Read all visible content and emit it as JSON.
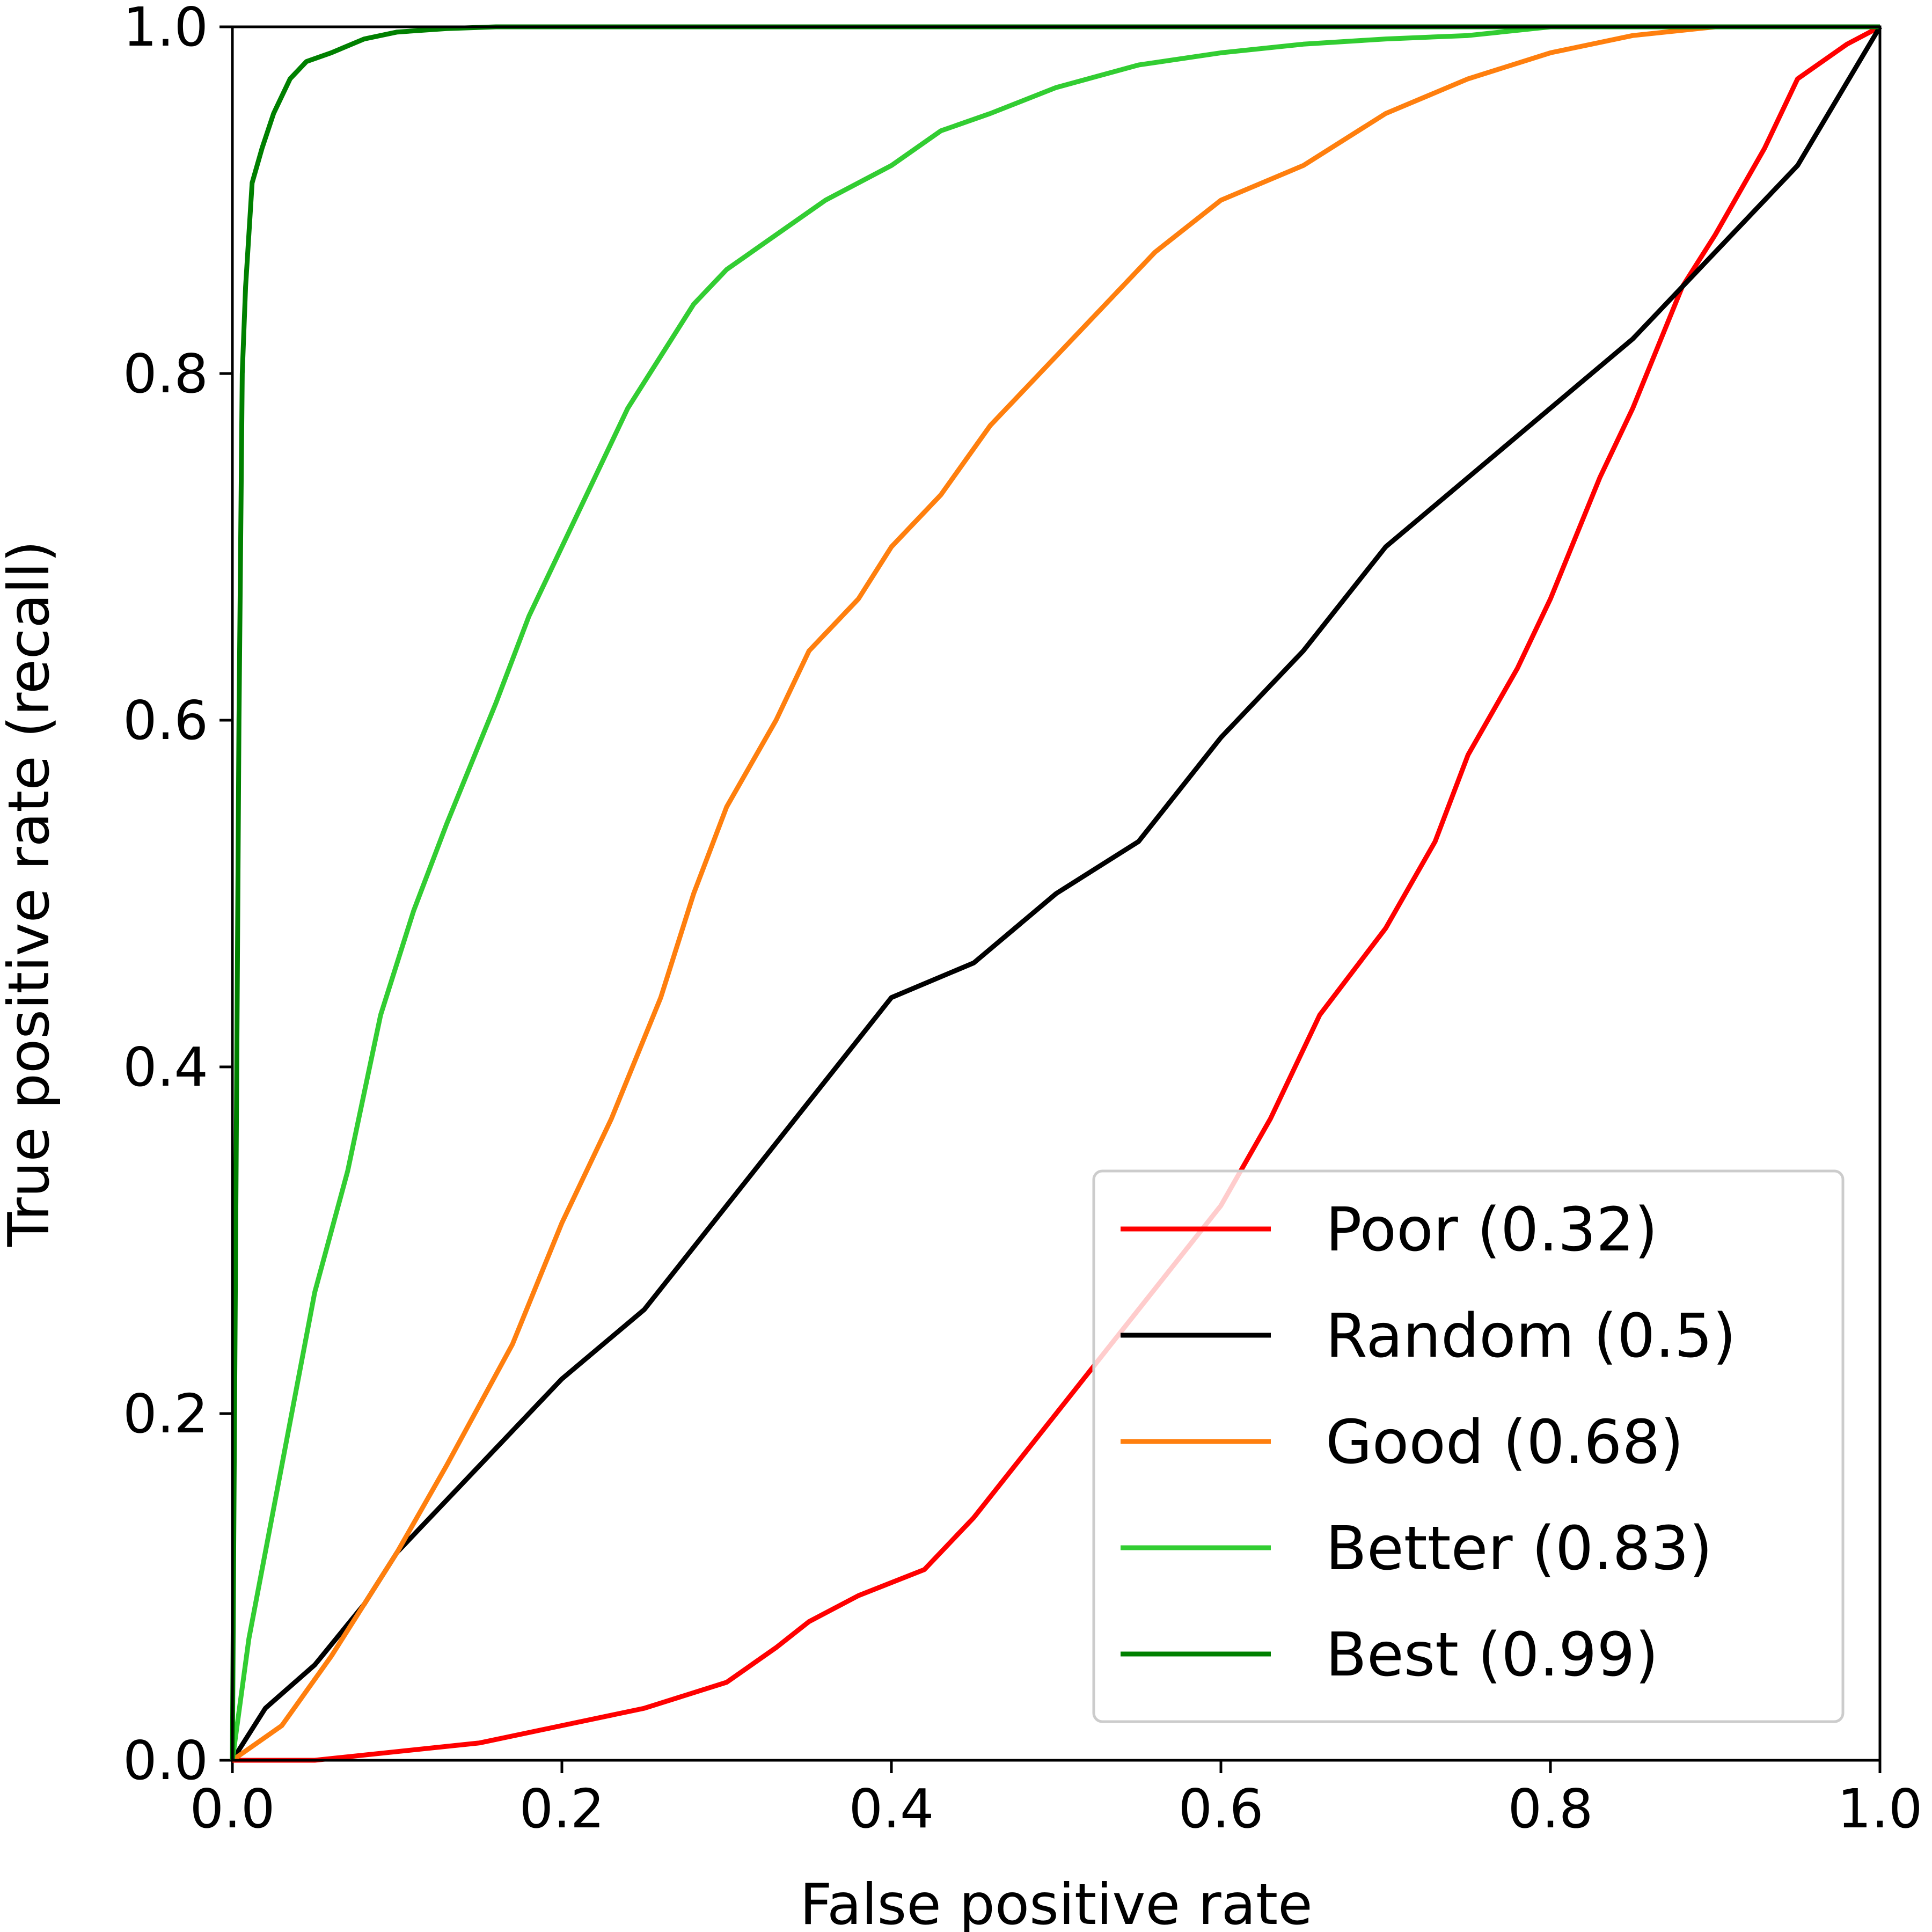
{
  "chart_data": {
    "type": "line",
    "title": "",
    "xlabel": "False positive rate",
    "ylabel": "True positive rate (recall)",
    "xlim": [
      0.0,
      1.0
    ],
    "ylim": [
      0.0,
      1.0
    ],
    "grid": false,
    "legend_position": "bottom-right",
    "x_ticks": [
      "0.0",
      "0.2",
      "0.4",
      "0.6",
      "0.8",
      "1.0"
    ],
    "y_ticks": [
      "0.0",
      "0.2",
      "0.4",
      "0.6",
      "0.8",
      "1.0"
    ],
    "series": [
      {
        "name": "Poor",
        "label": "Poor (0.32)",
        "auc": 0.32,
        "color": "#ff0000",
        "x": [
          0.0,
          0.05,
          0.1,
          0.15,
          0.2,
          0.25,
          0.3,
          0.33,
          0.35,
          0.38,
          0.42,
          0.45,
          0.5,
          0.55,
          0.6,
          0.63,
          0.66,
          0.7,
          0.73,
          0.75,
          0.78,
          0.8,
          0.83,
          0.85,
          0.88,
          0.9,
          0.93,
          0.95,
          0.98,
          1.0
        ],
        "y": [
          0.0,
          0.0,
          0.005,
          0.01,
          0.02,
          0.03,
          0.045,
          0.065,
          0.08,
          0.095,
          0.11,
          0.14,
          0.2,
          0.26,
          0.32,
          0.37,
          0.43,
          0.48,
          0.53,
          0.58,
          0.63,
          0.67,
          0.74,
          0.78,
          0.85,
          0.88,
          0.93,
          0.97,
          0.99,
          1.0
        ]
      },
      {
        "name": "Random",
        "label": "Random (0.5)",
        "auc": 0.5,
        "color": "#000000",
        "x": [
          0.0,
          0.02,
          0.05,
          0.08,
          0.1,
          0.15,
          0.2,
          0.25,
          0.3,
          0.35,
          0.4,
          0.45,
          0.5,
          0.55,
          0.6,
          0.65,
          0.7,
          0.75,
          0.8,
          0.85,
          0.9,
          0.95,
          1.0
        ],
        "y": [
          0.0,
          0.03,
          0.055,
          0.09,
          0.12,
          0.17,
          0.22,
          0.26,
          0.32,
          0.38,
          0.44,
          0.46,
          0.5,
          0.53,
          0.59,
          0.64,
          0.7,
          0.74,
          0.78,
          0.82,
          0.87,
          0.92,
          1.0
        ]
      },
      {
        "name": "Good",
        "label": "Good (0.68)",
        "auc": 0.68,
        "color": "#ff7f0e",
        "x": [
          0.0,
          0.03,
          0.06,
          0.1,
          0.13,
          0.17,
          0.2,
          0.23,
          0.26,
          0.28,
          0.3,
          0.33,
          0.35,
          0.38,
          0.4,
          0.43,
          0.46,
          0.5,
          0.53,
          0.56,
          0.6,
          0.65,
          0.7,
          0.75,
          0.8,
          0.85,
          0.9,
          1.0
        ],
        "y": [
          0.0,
          0.02,
          0.06,
          0.12,
          0.17,
          0.24,
          0.31,
          0.37,
          0.44,
          0.5,
          0.55,
          0.6,
          0.64,
          0.67,
          0.7,
          0.73,
          0.77,
          0.81,
          0.84,
          0.87,
          0.9,
          0.92,
          0.95,
          0.97,
          0.985,
          0.995,
          1.0,
          1.0
        ]
      },
      {
        "name": "Better",
        "label": "Better (0.83)",
        "auc": 0.83,
        "color": "#32cd32",
        "x": [
          0.0,
          0.01,
          0.03,
          0.05,
          0.07,
          0.09,
          0.11,
          0.13,
          0.16,
          0.18,
          0.2,
          0.22,
          0.24,
          0.26,
          0.28,
          0.3,
          0.33,
          0.36,
          0.4,
          0.43,
          0.46,
          0.5,
          0.55,
          0.6,
          0.65,
          0.7,
          0.75,
          0.8,
          0.9,
          1.0
        ],
        "y": [
          0.0,
          0.07,
          0.17,
          0.27,
          0.34,
          0.43,
          0.49,
          0.54,
          0.61,
          0.66,
          0.7,
          0.74,
          0.78,
          0.81,
          0.84,
          0.86,
          0.88,
          0.9,
          0.92,
          0.94,
          0.95,
          0.965,
          0.978,
          0.985,
          0.99,
          0.993,
          0.995,
          1.0,
          1.0,
          1.0
        ]
      },
      {
        "name": "Best",
        "label": "Best (0.99)",
        "auc": 0.99,
        "color": "#008000",
        "x": [
          0.0,
          0.002,
          0.004,
          0.006,
          0.008,
          0.012,
          0.018,
          0.025,
          0.035,
          0.045,
          0.06,
          0.08,
          0.1,
          0.13,
          0.16,
          0.2,
          1.0
        ],
        "y": [
          0.0,
          0.3,
          0.6,
          0.8,
          0.85,
          0.91,
          0.93,
          0.95,
          0.97,
          0.98,
          0.985,
          0.993,
          0.997,
          0.999,
          1.0,
          1.0,
          1.0
        ]
      }
    ]
  }
}
